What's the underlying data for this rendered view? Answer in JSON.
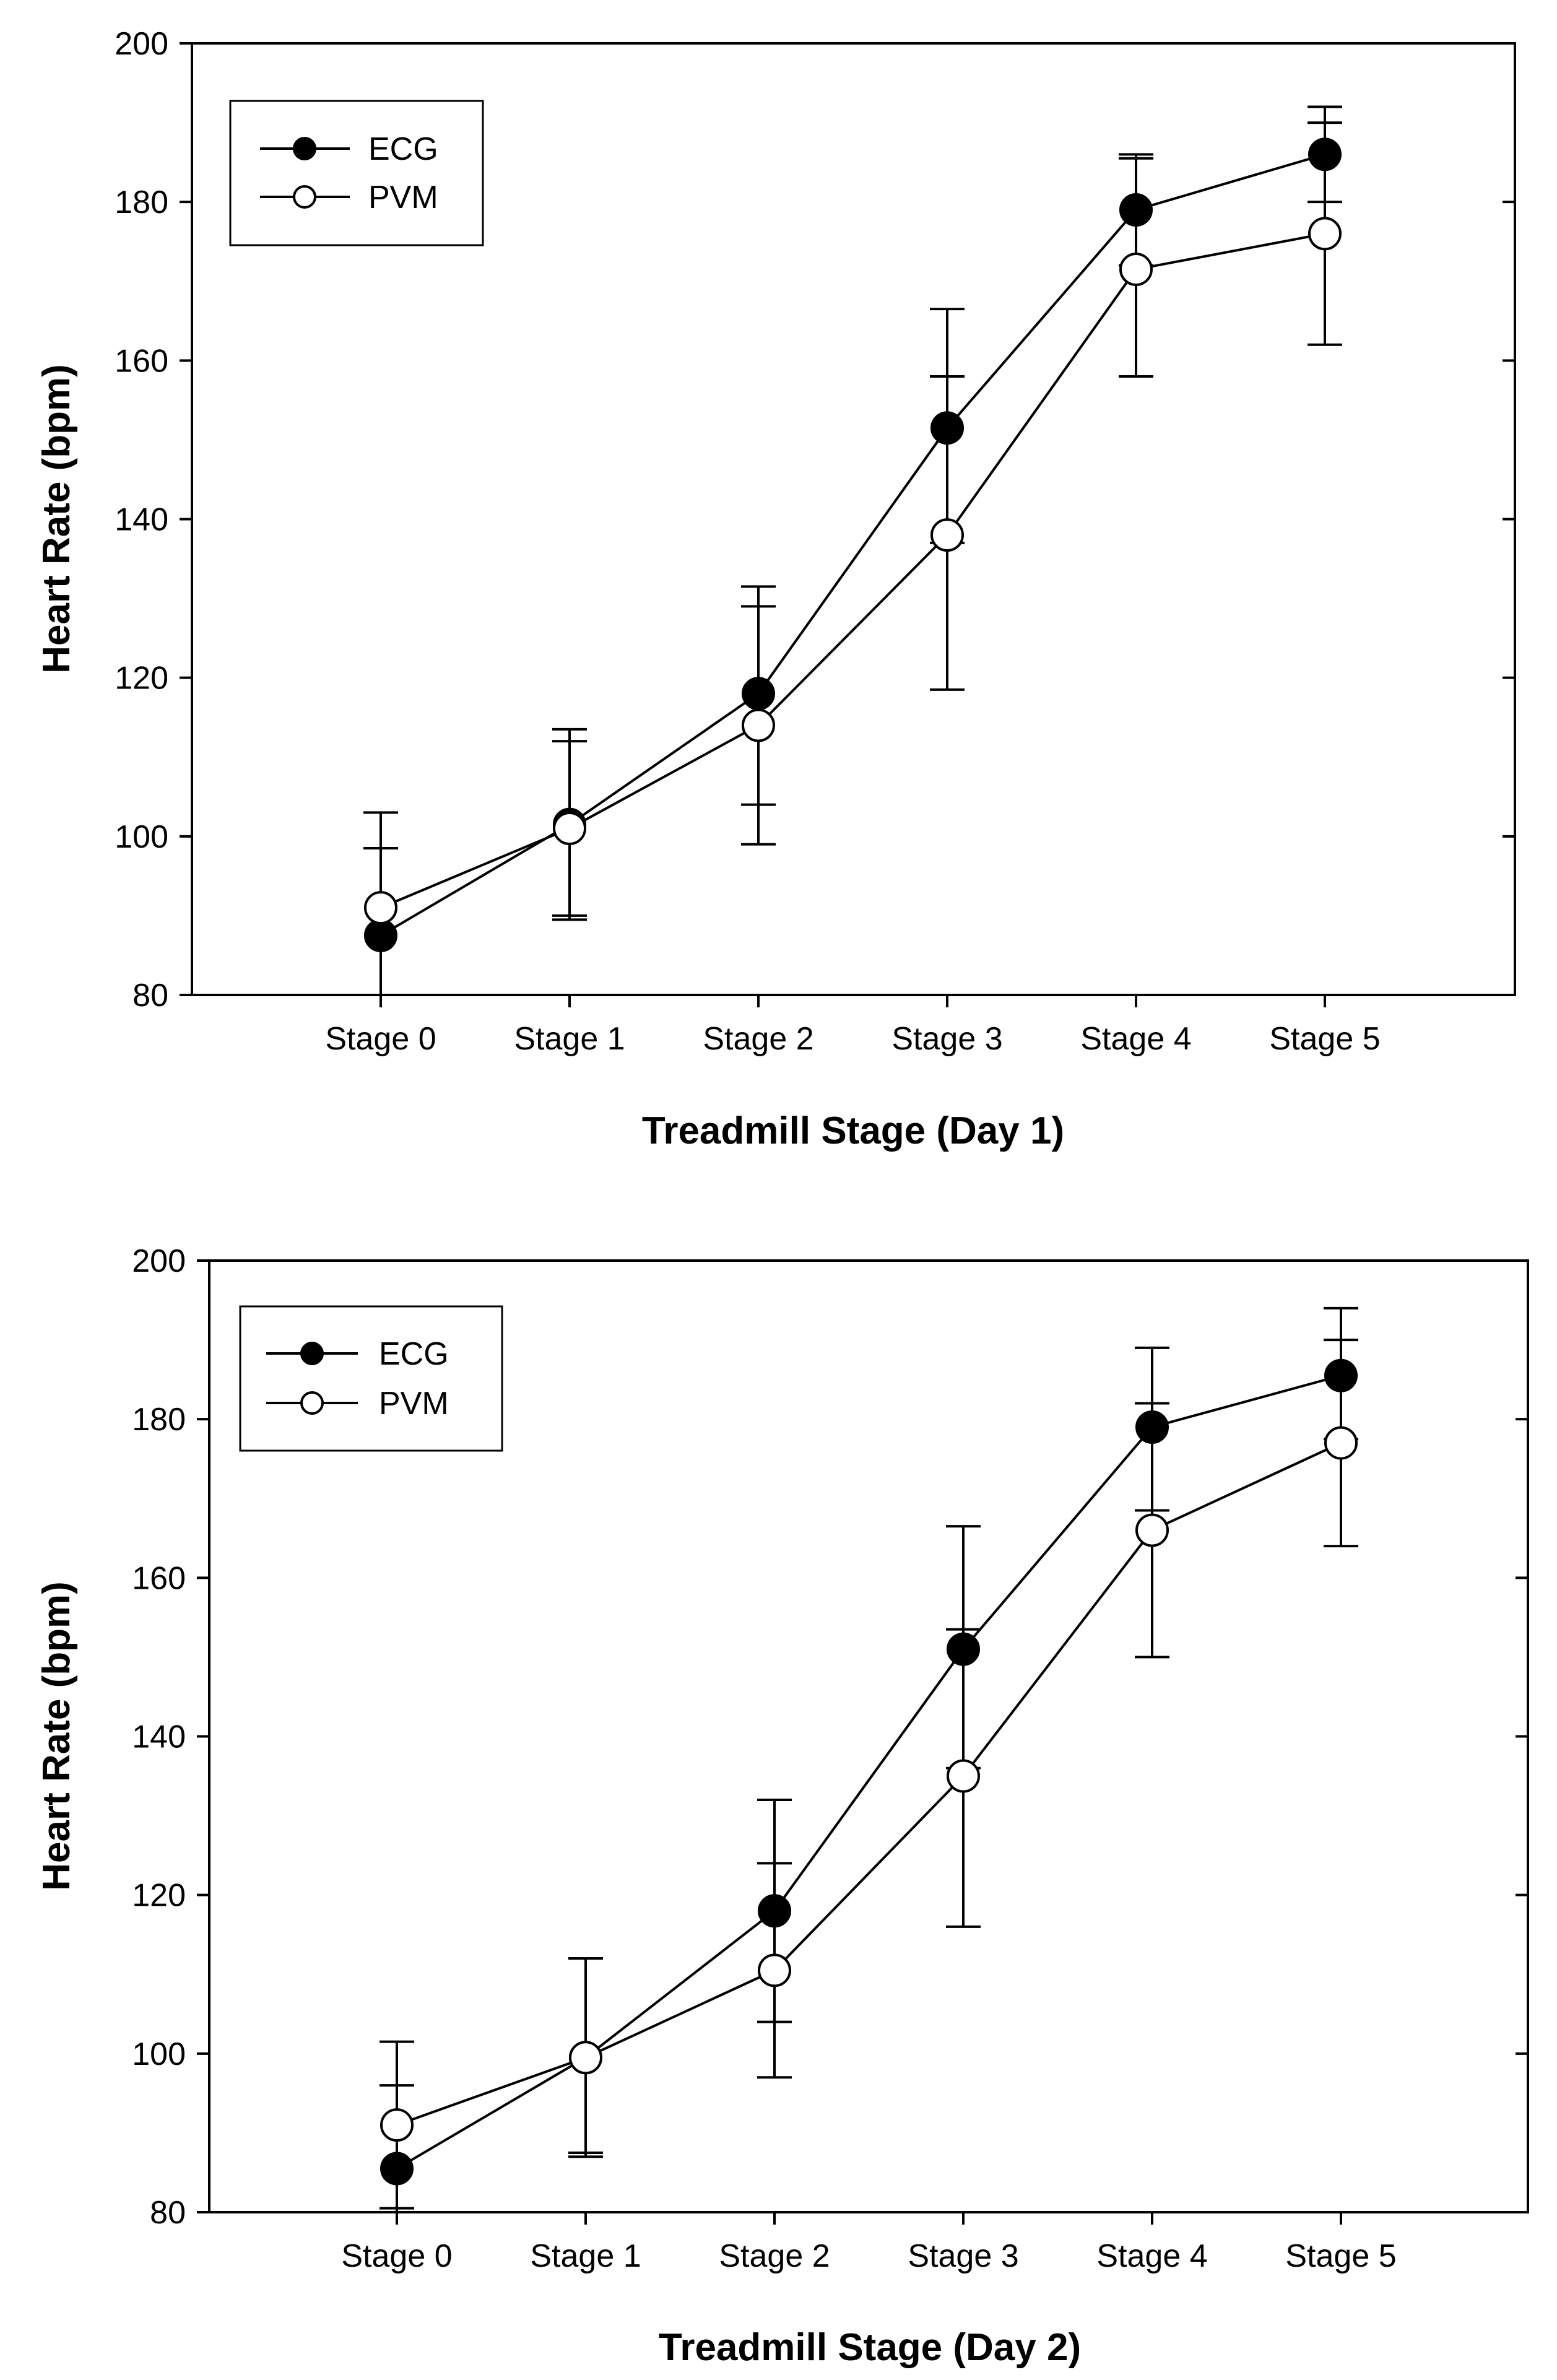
{
  "chart_data": [
    {
      "type": "line",
      "title": "",
      "xlabel": "Treadmill Stage (Day 1)",
      "ylabel": "Heart Rate (bpm)",
      "categories": [
        "Stage 0",
        "Stage 1",
        "Stage 2",
        "Stage 3",
        "Stage 4",
        "Stage 5"
      ],
      "ylim": [
        80,
        200
      ],
      "yticks": [
        "80",
        "100",
        "120",
        "140",
        "160",
        "180",
        "200"
      ],
      "legend_position": "top-left",
      "grid": false,
      "series": [
        {
          "name": "ECG",
          "marker": "filled-circle",
          "values": [
            87.5,
            101.5,
            118,
            151.5,
            179,
            186
          ],
          "error_low": [
            76.5,
            89.5,
            104,
            137,
            172,
            180
          ],
          "error_high": [
            98.5,
            113.5,
            131.5,
            166.5,
            186,
            192
          ]
        },
        {
          "name": "PVM",
          "marker": "open-circle",
          "values": [
            91,
            101,
            114,
            138,
            171.5,
            176
          ],
          "error_low": [
            79.5,
            90,
            99,
            118.5,
            158,
            162
          ],
          "error_high": [
            103,
            112,
            129,
            158,
            185.5,
            190
          ]
        }
      ]
    },
    {
      "type": "line",
      "title": "",
      "xlabel": "Treadmill Stage (Day 2)",
      "ylabel": "Heart Rate (bpm)",
      "categories": [
        "Stage 0",
        "Stage 1",
        "Stage 2",
        "Stage 3",
        "Stage 4",
        "Stage 5"
      ],
      "ylim": [
        80,
        200
      ],
      "yticks": [
        "80",
        "100",
        "120",
        "140",
        "160",
        "180",
        "200"
      ],
      "legend_position": "top-left",
      "grid": false,
      "series": [
        {
          "name": "ECG",
          "marker": "filled-circle",
          "values": [
            85.5,
            99.5,
            118,
            151,
            179,
            185.5
          ],
          "error_low": [
            75,
            87.5,
            104,
            136,
            168.5,
            177.5
          ],
          "error_high": [
            96,
            112,
            132,
            166.5,
            189,
            194
          ]
        },
        {
          "name": "PVM",
          "marker": "open-circle",
          "values": [
            91,
            99.5,
            110.5,
            135,
            166,
            177
          ],
          "error_low": [
            80.5,
            87,
            97,
            116,
            150,
            164
          ],
          "error_high": [
            101.5,
            112,
            124,
            153.5,
            182,
            190
          ]
        }
      ]
    }
  ]
}
